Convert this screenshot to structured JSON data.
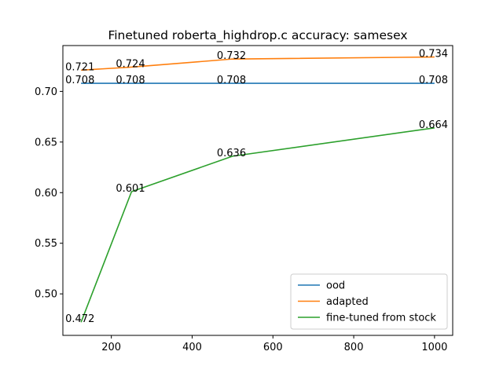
{
  "chart_data": {
    "type": "line",
    "title": "Finetuned roberta_highdrop.c accuracy: samesex",
    "xlabel": "",
    "ylabel": "",
    "xlim": [
      80,
      1045
    ],
    "ylim": [
      0.459,
      0.7453
    ],
    "xticks": [
      200,
      400,
      600,
      800,
      1000
    ],
    "yticks": [
      0.5,
      0.55,
      0.6,
      0.65,
      0.7
    ],
    "xtick_labels": [
      "200",
      "400",
      "600",
      "800",
      "1000"
    ],
    "ytick_labels": [
      "0.50",
      "0.55",
      "0.60",
      "0.65",
      "0.70"
    ],
    "grid": false,
    "legend_position": "lower-right",
    "series": [
      {
        "name": "ood",
        "color": "#1f77b4",
        "x": [
          125,
          250,
          500,
          1000
        ],
        "y": [
          0.708,
          0.708,
          0.708,
          0.708
        ],
        "labels": [
          "0.708",
          "0.708",
          "0.708",
          "0.708"
        ]
      },
      {
        "name": "adapted",
        "color": "#ff7f0e",
        "x": [
          125,
          250,
          500,
          1000
        ],
        "y": [
          0.721,
          0.724,
          0.732,
          0.734
        ],
        "labels": [
          "0.721",
          "0.724",
          "0.732",
          "0.734"
        ]
      },
      {
        "name": "fine-tuned from stock",
        "color": "#2ca02c",
        "x": [
          125,
          250,
          500,
          1000
        ],
        "y": [
          0.472,
          0.601,
          0.636,
          0.664
        ],
        "labels": [
          "0.472",
          "0.601",
          "0.636",
          "0.664"
        ]
      }
    ]
  }
}
